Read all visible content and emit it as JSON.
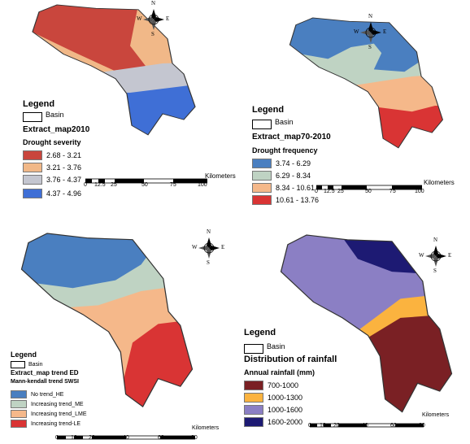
{
  "common": {
    "legend_label": "Legend",
    "basin_label": "Basin",
    "compass": {
      "n": "N",
      "s": "S",
      "e": "E",
      "w": "W"
    },
    "scale_unit": "Kilometers"
  },
  "panels": [
    {
      "layer": "Extract_map2010",
      "field": "Drought severity",
      "classes": [
        {
          "label": "2.68 - 3.21",
          "color": "#c9463d"
        },
        {
          "label": "3.21 - 3.76",
          "color": "#f1b888"
        },
        {
          "label": "3.76 - 4.37",
          "color": "#c4c6d0"
        },
        {
          "label": "4.37 - 4.96",
          "color": "#3f6fd6"
        }
      ],
      "scale_ticks": [
        "0",
        "12.5",
        "25",
        "50",
        "75",
        "100"
      ]
    },
    {
      "layer": "Extract_map70-2010",
      "field": "Drought frequency",
      "classes": [
        {
          "label": "3.74 - 6.29",
          "color": "#4a7fc0"
        },
        {
          "label": "6.29 - 8.34",
          "color": "#bfd3c3"
        },
        {
          "label": "8.34 - 10.61",
          "color": "#f5b88a"
        },
        {
          "label": "10.61 - 13.76",
          "color": "#d93434"
        }
      ],
      "scale_ticks": [
        "0",
        "12.5",
        "25",
        "50",
        "75",
        "100"
      ]
    },
    {
      "layer": "Extract_map trend ED",
      "field": "Mann-kendall trend SWSI",
      "classes": [
        {
          "label": "No trend_HE",
          "color": "#4a7fc0"
        },
        {
          "label": "Increasing trend_ME",
          "color": "#bfd3c3"
        },
        {
          "label": "Increasing trend_LME",
          "color": "#f5b88a"
        },
        {
          "label": "Increasing trend-LE",
          "color": "#d93434"
        }
      ],
      "scale_ticks": [
        "0",
        "10",
        "20",
        "40",
        "60",
        "80"
      ]
    },
    {
      "layer": "Distribution of rainfall",
      "field": "Annual rainfall (mm)",
      "classes": [
        {
          "label": "700-1000",
          "color": "#7a2024"
        },
        {
          "label": "1000-1300",
          "color": "#fbb33f"
        },
        {
          "label": "1000-1600",
          "color": "#8b7fc4"
        },
        {
          "label": "1600-2000",
          "color": "#1d1a73"
        }
      ],
      "scale_ticks": [
        "0",
        "10",
        "20",
        "40",
        "60",
        "80"
      ]
    }
  ]
}
